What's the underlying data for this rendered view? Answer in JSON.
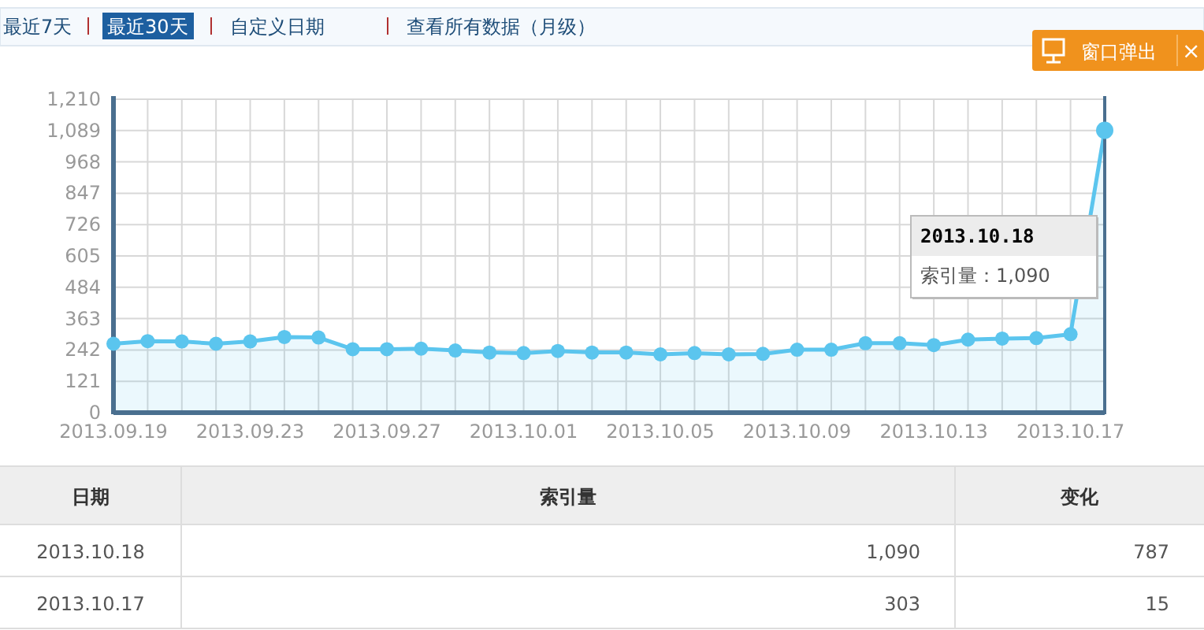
{
  "chart_data": {
    "type": "area",
    "color": "#5bc5ee",
    "marker": "circle",
    "grid": true,
    "x": [
      "2013-09-19",
      "2013-09-20",
      "2013-09-21",
      "2013-09-22",
      "2013-09-23",
      "2013-09-24",
      "2013-09-25",
      "2013-09-26",
      "2013-09-27",
      "2013-09-28",
      "2013-09-29",
      "2013-09-30",
      "2013-10-01",
      "2013-10-02",
      "2013-10-03",
      "2013-10-04",
      "2013-10-05",
      "2013-10-06",
      "2013-10-07",
      "2013-10-08",
      "2013-10-09",
      "2013-10-10",
      "2013-10-11",
      "2013-10-12",
      "2013-10-13",
      "2013-10-14",
      "2013-10-15",
      "2013-10-16",
      "2013-10-17",
      "2013-10-18"
    ],
    "values": [
      266,
      276,
      275,
      266,
      275,
      292,
      290,
      245,
      245,
      247,
      240,
      232,
      230,
      238,
      232,
      232,
      225,
      230,
      225,
      227,
      243,
      243,
      268,
      268,
      261,
      282,
      286,
      288,
      303,
      1090
    ],
    "xlim": [
      "2013-09-19",
      "2013-10-18"
    ],
    "xticks": [
      {
        "value": "2013-09-19",
        "label": "2013.09.19"
      },
      {
        "value": "2013-09-20",
        "label": null
      },
      {
        "value": "2013-09-21",
        "label": null
      },
      {
        "value": "2013-09-22",
        "label": null
      },
      {
        "value": "2013-09-23",
        "label": "2013.09.23"
      },
      {
        "value": "2013-09-24",
        "label": null
      },
      {
        "value": "2013-09-25",
        "label": null
      },
      {
        "value": "2013-09-26",
        "label": null
      },
      {
        "value": "2013-09-27",
        "label": "2013.09.27"
      },
      {
        "value": "2013-09-28",
        "label": null
      },
      {
        "value": "2013-09-29",
        "label": null
      },
      {
        "value": "2013-09-30",
        "label": null
      },
      {
        "value": "2013-10-01",
        "label": "2013.10.01"
      },
      {
        "value": "2013-10-02",
        "label": null
      },
      {
        "value": "2013-10-03",
        "label": null
      },
      {
        "value": "2013-10-04",
        "label": null
      },
      {
        "value": "2013-10-05",
        "label": "2013.10.05"
      },
      {
        "value": "2013-10-06",
        "label": null
      },
      {
        "value": "2013-10-07",
        "label": null
      },
      {
        "value": "2013-10-08",
        "label": null
      },
      {
        "value": "2013-10-09",
        "label": "2013.10.09"
      },
      {
        "value": "2013-10-10",
        "label": null
      },
      {
        "value": "2013-10-11",
        "label": null
      },
      {
        "value": "2013-10-12",
        "label": null
      },
      {
        "value": "2013-10-13",
        "label": "2013.10.13"
      },
      {
        "value": "2013-10-14",
        "label": null
      },
      {
        "value": "2013-10-15",
        "label": null
      },
      {
        "value": "2013-10-16",
        "label": null
      },
      {
        "value": "2013-10-17",
        "label": "2013.10.17"
      },
      {
        "value": "2013-10-18",
        "label": null
      }
    ],
    "ylim": [
      0,
      1210
    ],
    "yticks": [
      0,
      121,
      242,
      363,
      484,
      605,
      726,
      847,
      968,
      {
        "value": 1089,
        "label": "1,089"
      },
      {
        "value": 1210,
        "label": "1,210"
      }
    ],
    "annotations": [
      "最近7天",
      "最近30天",
      "自定义日期",
      "查看所有数据（月级）",
      "窗口弹出",
      "×",
      "2013.10.18",
      "索引量：1,090",
      "日期",
      "索引量",
      "变化",
      "2013.10.18",
      "1,090",
      "787",
      "2013.10.17",
      "303",
      "15"
    ]
  }
}
